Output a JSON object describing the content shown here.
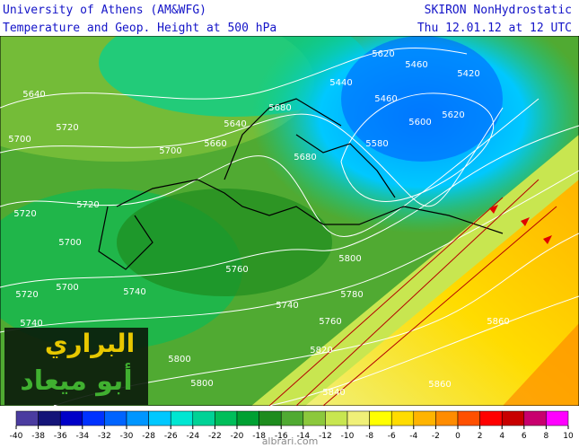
{
  "header": {
    "left": [
      "University of Athens (AM&WFG)",
      "Temperature and Geop. Height at  500 hPa"
    ],
    "right": [
      "SKIRON NonHydrostatic",
      "Thu 12.01.12 at 12 UTC"
    ]
  },
  "contour_labels": [
    "5640",
    "5720",
    "5700",
    "5660",
    "5640",
    "5700",
    "5680",
    "5720",
    "5720",
    "5700",
    "5720",
    "5700",
    "5740",
    "5760",
    "5740",
    "5740",
    "5760",
    "5780",
    "5800",
    "5620",
    "5460",
    "5460",
    "5600",
    "5620",
    "5420",
    "5440",
    "5800",
    "5800",
    "5860",
    "5860",
    "5840",
    "5820",
    "5680",
    "5580"
  ],
  "watermark": {
    "title": "البراري",
    "subtitle": "أبو ميعاد",
    "site": "albrari.com"
  },
  "colorbar": {
    "ticks": [
      -40,
      -38,
      -36,
      -34,
      -32,
      -30,
      -28,
      -26,
      -24,
      -22,
      -20,
      -18,
      -16,
      -14,
      -12,
      -10,
      -8,
      -6,
      -4,
      -2,
      0,
      2,
      4,
      6,
      8,
      10
    ],
    "colors": [
      "#4b3ca0",
      "#141478",
      "#0000c8",
      "#0032ff",
      "#0064ff",
      "#0096ff",
      "#00c8ff",
      "#00e6d2",
      "#00d296",
      "#00be5a",
      "#00a032",
      "#1e8c1e",
      "#50aa32",
      "#8cc83c",
      "#c8e650",
      "#f0f078",
      "#ffff00",
      "#ffdc00",
      "#ffb400",
      "#ff8c00",
      "#ff5000",
      "#ff0000",
      "#c80000",
      "#c8006e",
      "#ff00ff"
    ]
  }
}
